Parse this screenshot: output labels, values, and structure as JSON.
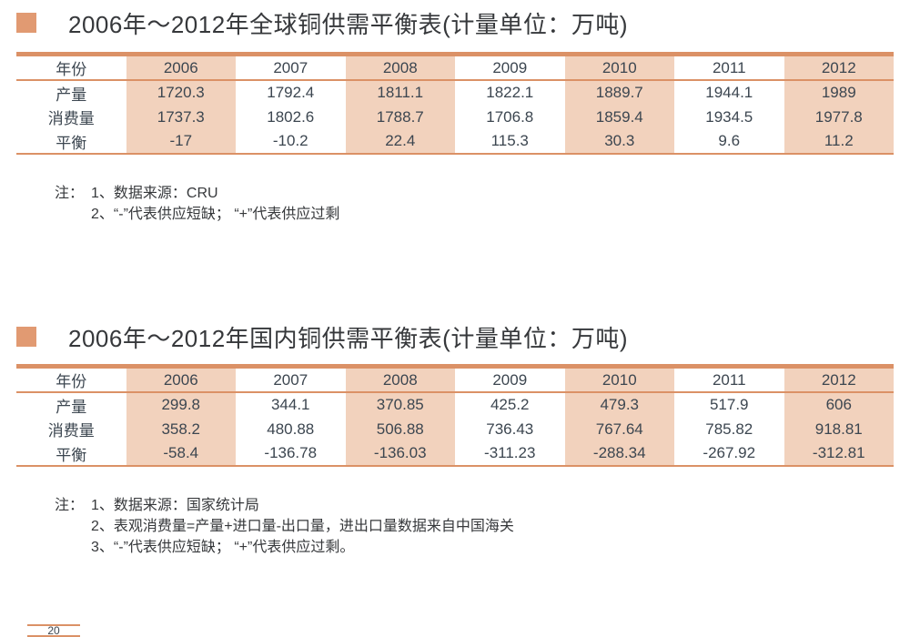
{
  "page": {
    "accent_color": "#db9166",
    "column_shade_color": "#f2d2bd",
    "bullet_color": "#e19a72"
  },
  "tables": [
    {
      "title": "2006年～2012年全球铜供需平衡表(计量单位：万吨)",
      "columns": [
        "年份",
        "2006",
        "2007",
        "2008",
        "2009",
        "2010",
        "2011",
        "2012"
      ],
      "rows": [
        {
          "label": "产量",
          "values": [
            "1720.3",
            "1792.4",
            "1811.1",
            "1822.1",
            "1889.7",
            "1944.1",
            "1989"
          ]
        },
        {
          "label": "消费量",
          "values": [
            "1737.3",
            "1802.6",
            "1788.7",
            "1706.8",
            "1859.4",
            "1934.5",
            "1977.8"
          ]
        },
        {
          "label": "平衡",
          "values": [
            "-17",
            "-10.2",
            "22.4",
            "115.3",
            "30.3",
            "9.6",
            "11.2"
          ]
        }
      ],
      "note_prefix": "注：",
      "notes": [
        "1、数据来源：CRU",
        "2、“-”代表供应短缺； “+”代表供应过剩"
      ]
    },
    {
      "title": "2006年～2012年国内铜供需平衡表(计量单位：万吨)",
      "columns": [
        "年份",
        "2006",
        "2007",
        "2008",
        "2009",
        "2010",
        "2011",
        "2012"
      ],
      "rows": [
        {
          "label": "产量",
          "values": [
            "299.8",
            "344.1",
            "370.85",
            "425.2",
            "479.3",
            "517.9",
            "606"
          ]
        },
        {
          "label": "消费量",
          "values": [
            "358.2",
            "480.88",
            "506.88",
            "736.43",
            "767.64",
            "785.82",
            "918.81"
          ]
        },
        {
          "label": "平衡",
          "values": [
            "-58.4",
            "-136.78",
            "-136.03",
            "-311.23",
            "-288.34",
            "-267.92",
            "-312.81"
          ]
        }
      ],
      "note_prefix": "注：",
      "notes": [
        "1、数据来源：国家统计局",
        "2、表观消费量=产量+进口量-出口量，进出口量数据来自中国海关",
        "3、“-”代表供应短缺； “+”代表供应过剩。"
      ]
    }
  ],
  "page_fragment": {
    "text": "20"
  }
}
